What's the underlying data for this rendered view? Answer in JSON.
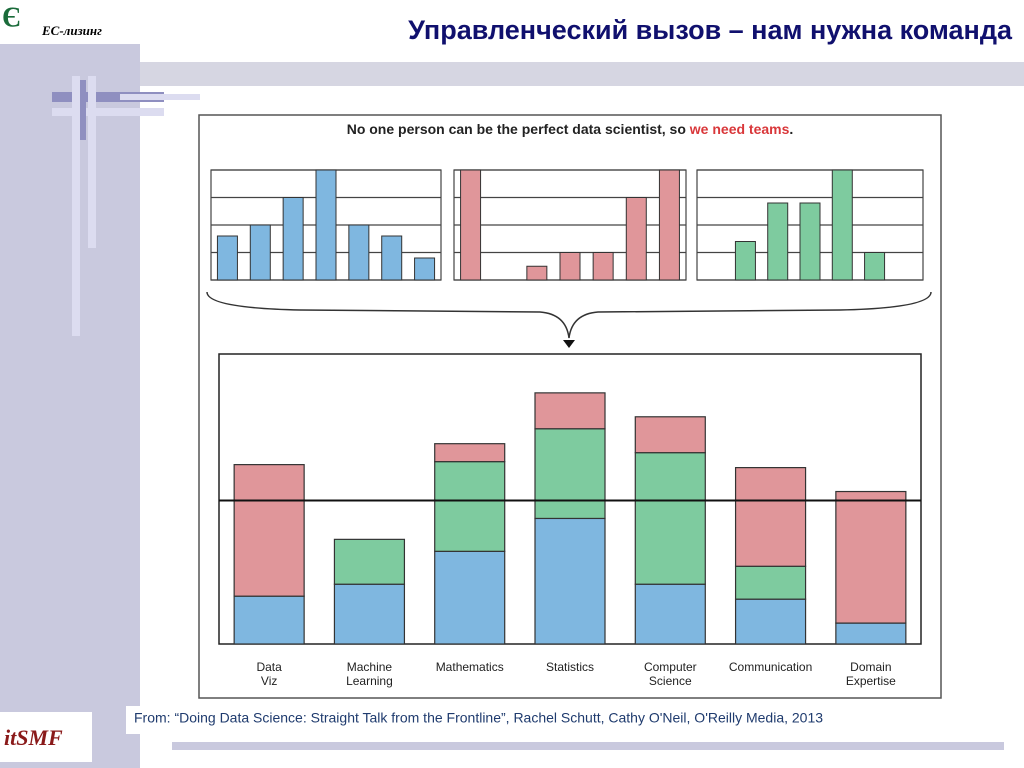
{
  "slide": {
    "logo": "ЕС-лизинг",
    "title": "Управленческий вызов – нам нужна команда",
    "source": "From: “Doing Data Science: Straight Talk from the Frontline”, Rachel Schutt, Cathy O'Neil, O'Reilly Media, 2013",
    "footer_logo": "itSMF"
  },
  "figure": {
    "heading": [
      "No one person can be the perfect data scientist, so ",
      "we need teams",
      "."
    ]
  },
  "chart_data": [
    {
      "type": "bar",
      "values": [
        1.6,
        2,
        3,
        4,
        2,
        1.6,
        0.8
      ],
      "color": "#7fb7e0",
      "ylim": [
        0,
        4
      ],
      "yticks": [
        0,
        1,
        2,
        3,
        4
      ],
      "grid": true
    },
    {
      "type": "bar",
      "values": [
        4,
        0,
        0.5,
        1,
        1,
        3,
        4
      ],
      "color": "#e0969a",
      "ylim": [
        0,
        4
      ],
      "yticks": [
        0,
        1,
        2,
        3,
        4
      ],
      "grid": true
    },
    {
      "type": "bar",
      "values": [
        0,
        1.4,
        2.8,
        2.8,
        4,
        1,
        0
      ],
      "color": "#7ecb9f",
      "ylim": [
        0,
        4
      ],
      "yticks": [
        0,
        1,
        2,
        3,
        4
      ],
      "grid": true
    },
    {
      "type": "stacked_bar",
      "categories": [
        "Data Viz",
        "Machine Learning",
        "Mathematics",
        "Statistics",
        "Computer Science",
        "Communication",
        "Domain Expertise"
      ],
      "series": [
        {
          "color": "#7fb7e0",
          "values": [
            1.6,
            2.0,
            3.1,
            4.2,
            2.0,
            1.5,
            0.7
          ]
        },
        {
          "color": "#7ecb9f",
          "values": [
            0,
            1.5,
            3.0,
            3.0,
            4.4,
            1.1,
            0
          ]
        },
        {
          "color": "#e0969a",
          "values": [
            4.4,
            0,
            0.6,
            1.2,
            1.2,
            3.3,
            4.4
          ]
        }
      ],
      "threshold": 4.8,
      "ylim": [
        0,
        9.7
      ]
    }
  ]
}
